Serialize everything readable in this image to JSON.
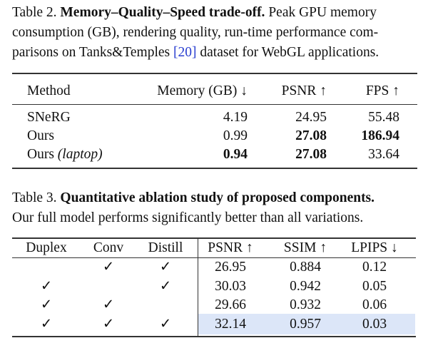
{
  "table2": {
    "label": "Table 2.",
    "title": "Memory–Quality–Speed trade-off.",
    "caption_line1_rest": "Peak GPU memory",
    "caption_line2": "consumption (GB), rendering quality, run-time performance com-",
    "caption_line3_pre": "parisons on Tanks&Temples ",
    "citation": "[20]",
    "caption_line3_post": " dataset for WebGL applications.",
    "headers": [
      "Method",
      "Memory (GB) ↓",
      "PSNR ↑",
      "FPS ↑"
    ],
    "rows": [
      {
        "method": "SNeRG",
        "method_suffix": "",
        "memory": "4.19",
        "psnr": "24.95",
        "fps": "55.48"
      },
      {
        "method": "Ours",
        "method_suffix": "",
        "memory": "0.99",
        "psnr": "27.08",
        "fps": "186.94"
      },
      {
        "method": "Ours ",
        "method_suffix": "(laptop)",
        "memory": "0.94",
        "psnr": "27.08",
        "fps": "33.64"
      }
    ]
  },
  "table3": {
    "label": "Table 3.",
    "title": "Quantitative ablation study of proposed components.",
    "caption_line2": "Our full model performs significantly better than all variations.",
    "headers": [
      "Duplex",
      "Conv",
      "Distill",
      "PSNR ↑",
      "SSIM ↑",
      "LPIPS ↓"
    ],
    "check": "✓",
    "rows": [
      {
        "duplex": "",
        "conv": "✓",
        "distill": "✓",
        "psnr": "26.95",
        "ssim": "0.884",
        "lpips": "0.12"
      },
      {
        "duplex": "✓",
        "conv": "",
        "distill": "✓",
        "psnr": "30.03",
        "ssim": "0.942",
        "lpips": "0.05"
      },
      {
        "duplex": "✓",
        "conv": "✓",
        "distill": "",
        "psnr": "29.66",
        "ssim": "0.932",
        "lpips": "0.06"
      },
      {
        "duplex": "✓",
        "conv": "✓",
        "distill": "✓",
        "psnr": "32.14",
        "ssim": "0.957",
        "lpips": "0.03"
      }
    ],
    "highlight_color": "#dce6f8"
  }
}
